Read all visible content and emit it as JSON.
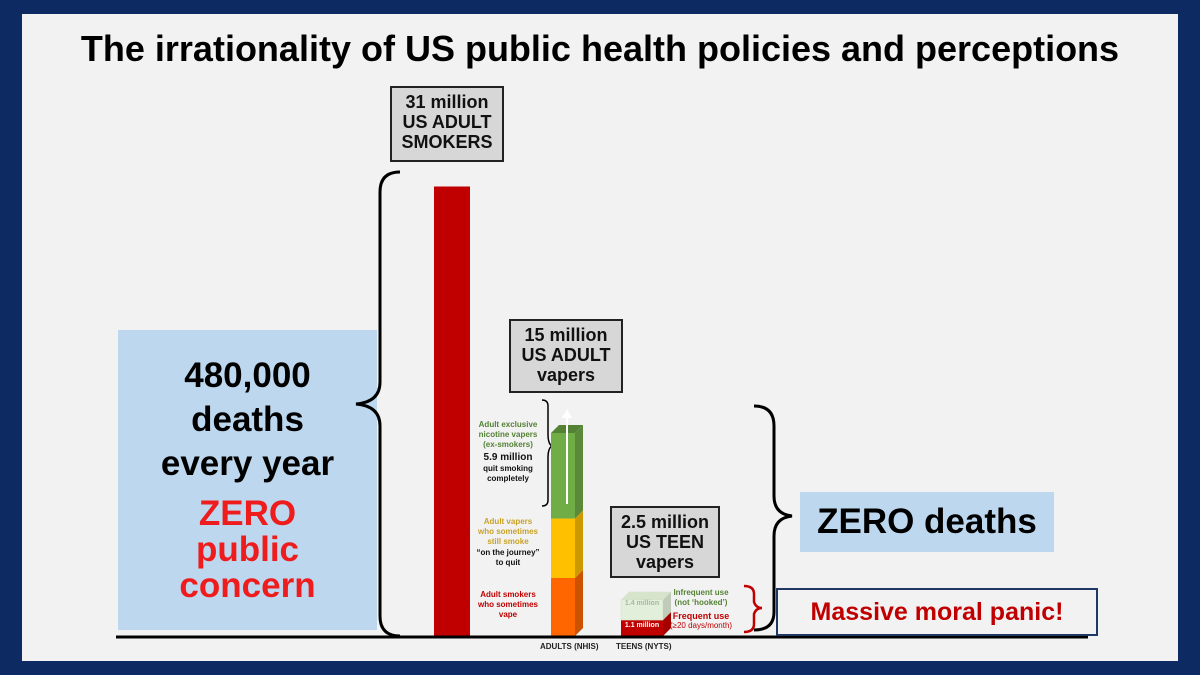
{
  "title": "The irrationality of US public health policies and perceptions",
  "left_panel": {
    "deaths_lines": [
      "480,000",
      "deaths",
      "every year"
    ],
    "concern_lines": [
      "ZERO",
      "public",
      "concern"
    ]
  },
  "zero_deaths": "ZERO deaths",
  "moral_panic": "Massive moral panic!",
  "chart_data": {
    "type": "bar",
    "title": "The irrationality of US public health policies and perceptions",
    "units": "million people",
    "ylim": [
      0,
      31
    ],
    "x_axis_labels": [
      "ADULTS (NHIS)",
      "TEENS (NYTS)"
    ],
    "bars": [
      {
        "name": "US ADULT SMOKERS",
        "label_lines": [
          "31 million",
          "US ADULT",
          "SMOKERS"
        ],
        "value": 31,
        "color": "#c00000"
      },
      {
        "name": "US ADULT vapers",
        "label_lines": [
          "15 million",
          "US ADULT",
          "vapers"
        ],
        "value": 15,
        "segments": [
          {
            "name": "Adult smokers who sometimes vape",
            "value": 4.0,
            "color": "#ff6600",
            "annotation_lines": [
              "Adult smokers",
              "who sometimes",
              "vape"
            ],
            "annotation_color": "#c00000"
          },
          {
            "name": "Adult vapers who still smoke",
            "value": 4.1,
            "color": "#ffc000",
            "annotation_lines": [
              "Adult vapers",
              "who sometimes",
              "still smoke"
            ],
            "annotation_color": "#c9a227",
            "note_lines": [
              "“on the journey”",
              "to quit"
            ]
          },
          {
            "name": "Adult exclusive nicotine vapers (ex-smokers)",
            "value": 5.9,
            "color": "#70ad47",
            "annotation_lines": [
              "Adult exclusive",
              "nicotine vapers",
              "(ex-smokers)"
            ],
            "annotation_color": "#548235",
            "note_lines": [
              "5.9 million",
              "quit smoking",
              "completely"
            ]
          }
        ]
      },
      {
        "name": "US TEEN vapers",
        "label_lines": [
          "2.5 million",
          "US TEEN",
          "vapers"
        ],
        "value": 2.5,
        "segments": [
          {
            "name": "Frequent use",
            "value": 1.1,
            "color": "#c00000",
            "inner_label": "1.1 million",
            "annotation_lines": [
              "Frequent use",
              "(≥20 days/month)"
            ],
            "annotation_color": "#c00000"
          },
          {
            "name": "Infrequent use",
            "value": 1.4,
            "color": "#e2efda",
            "inner_label": "1.4 million",
            "annotation_lines": [
              "Infrequent use",
              "(not ‘hooked’)"
            ],
            "annotation_color": "#548235"
          }
        ]
      }
    ]
  }
}
